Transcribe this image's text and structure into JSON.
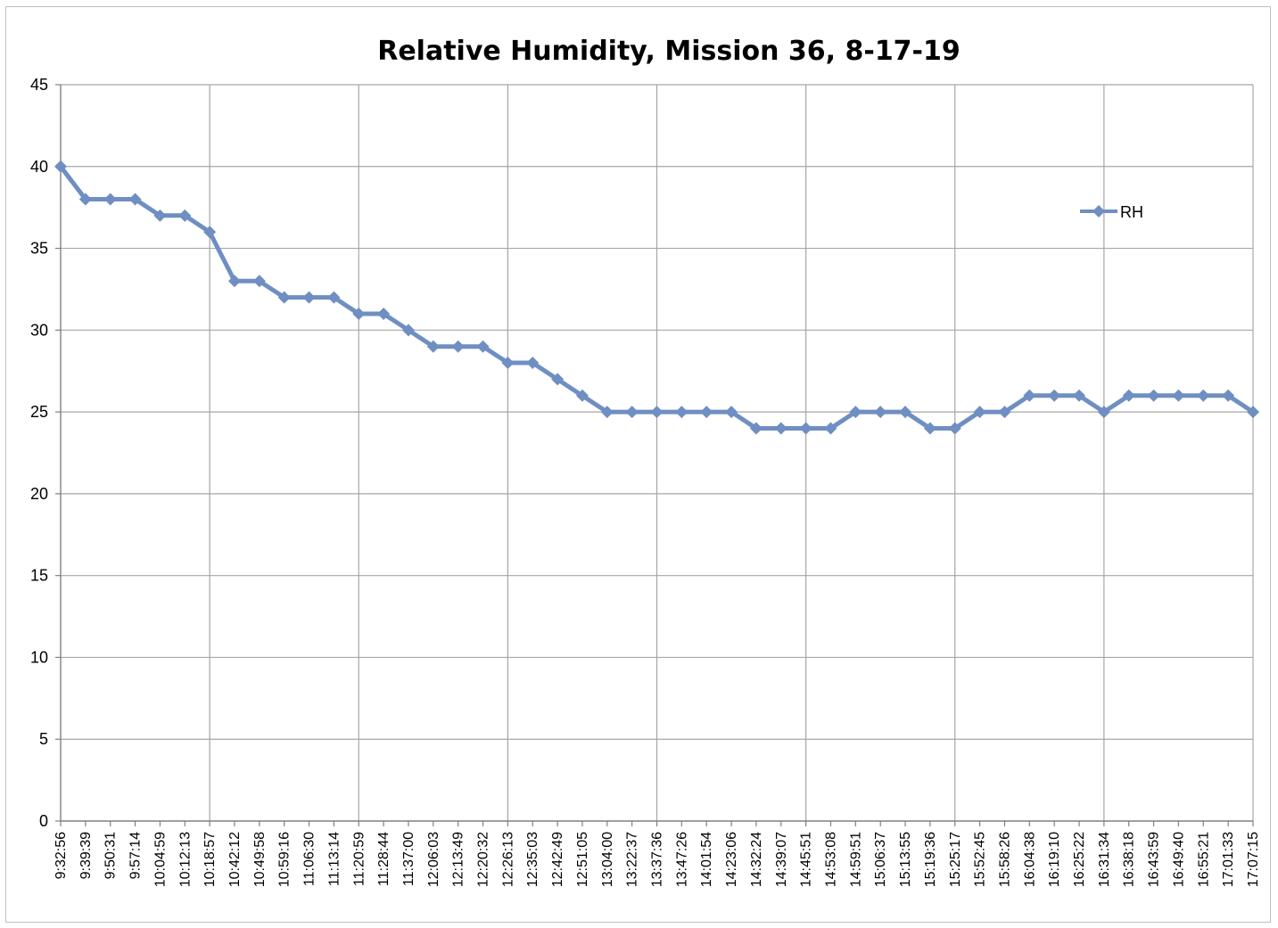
{
  "chart_data": {
    "type": "line",
    "title": "Relative Humidity, Mission 36, 8-17-19",
    "xlabel": "",
    "ylabel": "",
    "ylim": [
      0,
      45
    ],
    "yticks": [
      0,
      5,
      10,
      15,
      20,
      25,
      30,
      35,
      40,
      45
    ],
    "categories": [
      "9:32:56",
      "9:39:39",
      "9:50:31",
      "9:57:14",
      "10:04:59",
      "10:12:13",
      "10:18:57",
      "10:42:12",
      "10:49:58",
      "10:59:16",
      "11:06:30",
      "11:13:14",
      "11:20:59",
      "11:28:44",
      "11:37:00",
      "12:06:03",
      "12:13:49",
      "12:20:32",
      "12:26:13",
      "12:35:03",
      "12:42:49",
      "12:51:05",
      "13:04:00",
      "13:22:37",
      "13:37:36",
      "13:47:26",
      "14:01:54",
      "14:23:06",
      "14:32:24",
      "14:39:07",
      "14:45:51",
      "14:53:08",
      "14:59:51",
      "15:06:37",
      "15:13:55",
      "15:19:36",
      "15:25:17",
      "15:52:45",
      "15:58:26",
      "16:04:38",
      "16:19:10",
      "16:25:22",
      "16:31:34",
      "16:38:18",
      "16:43:59",
      "16:49:40",
      "16:55:21",
      "17:01:33",
      "17:07:15"
    ],
    "grid": true,
    "legend_position": "right",
    "series": [
      {
        "name": "RH",
        "color": "#6f8fc2",
        "marker": "diamond",
        "values": [
          40,
          38,
          38,
          38,
          37,
          37,
          36,
          33,
          33,
          32,
          32,
          32,
          31,
          31,
          30,
          29,
          29,
          29,
          28,
          28,
          27,
          26,
          25,
          25,
          25,
          25,
          25,
          25,
          24,
          24,
          24,
          24,
          25,
          25,
          25,
          24,
          24,
          25,
          25,
          26,
          26,
          26,
          25,
          26,
          26,
          26,
          26,
          26,
          25
        ]
      }
    ]
  }
}
